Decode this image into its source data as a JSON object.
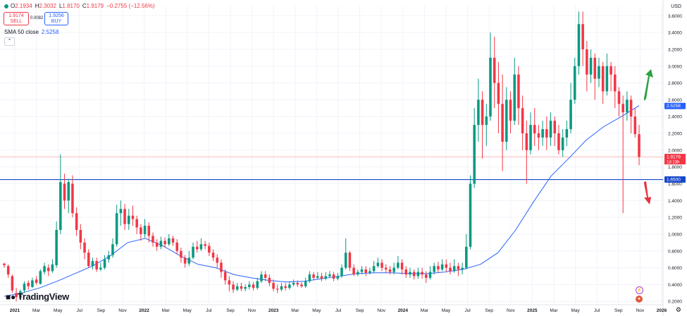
{
  "legend": {
    "open_label": "O",
    "open": "2.1934",
    "high_label": "H",
    "high": "2.3032",
    "low_label": "L",
    "low": "1.8170",
    "close_label": "C",
    "close": "1.9179",
    "change": "−0.2755 (−12.56%)"
  },
  "trade": {
    "sell_price": "1.9174",
    "sell_label": "SELL",
    "spread": "0.0082",
    "buy_price": "1.9256",
    "buy_label": "BUY"
  },
  "indicator": {
    "name": "SMA 50 close",
    "value": "2.5258"
  },
  "collapse_icon": "chevron-up-icon",
  "currency": "USD",
  "brand": "TradingView",
  "chart_data": {
    "type": "candlestick",
    "timeframe": "weekly",
    "y_ticks": [
      "3.6000",
      "3.4000",
      "3.2000",
      "3.0000",
      "2.8000",
      "2.6000",
      "2.4000",
      "2.2000",
      "2.0000",
      "1.8000",
      "1.6000",
      "1.4000",
      "1.2000",
      "1.0000",
      "0.8000",
      "0.6000",
      "0.4000",
      "0.2000"
    ],
    "x_ticks": [
      "2021",
      "Mar",
      "May",
      "Jul",
      "Sep",
      "Nov",
      "2022",
      "Mar",
      "May",
      "Jul",
      "Sep",
      "Nov",
      "2023",
      "Mar",
      "May",
      "Jul",
      "Sep",
      "Nov",
      "2024",
      "Mar",
      "May",
      "Jul",
      "Sep",
      "Nov",
      "2025",
      "Mar",
      "May",
      "Jul",
      "Sep",
      "Nov",
      "2026"
    ],
    "ylim": [
      0.16,
      3.72
    ],
    "price_line": {
      "value": 1.9179,
      "label": "1.9179",
      "countdown": "1d 13h",
      "color": "#f23645"
    },
    "sma_label": {
      "value": 2.5258,
      "label": "2.5258",
      "color": "#2962ff"
    },
    "horizontal_line": {
      "value": 1.65,
      "label": "1.6500",
      "color": "#1848cc"
    },
    "arrows": [
      {
        "direction": "up",
        "color": "#2ea043"
      },
      {
        "direction": "down",
        "color": "#e5323f"
      }
    ],
    "up_color": "#089981",
    "down_color": "#f23645",
    "sma_color": "#2962ff",
    "sma_values": [
      0.26,
      0.3,
      0.36,
      0.44,
      0.53,
      0.62,
      0.74,
      0.9,
      0.95,
      0.86,
      0.74,
      0.64,
      0.6,
      0.52,
      0.48,
      0.45,
      0.43,
      0.44,
      0.47,
      0.5,
      0.53,
      0.54,
      0.54,
      0.53,
      0.53,
      0.55,
      0.58,
      0.64,
      0.78,
      1.05,
      1.38,
      1.69,
      1.9,
      2.12,
      2.28,
      2.4,
      2.53
    ],
    "candles": [
      [
        0.65,
        0.63,
        0.66,
        0.6
      ],
      [
        0.62,
        0.52,
        0.64,
        0.48
      ],
      [
        0.5,
        0.33,
        0.52,
        0.3
      ],
      [
        0.3,
        0.25,
        0.36,
        0.2
      ],
      [
        0.24,
        0.32,
        0.34,
        0.22
      ],
      [
        0.33,
        0.41,
        0.44,
        0.3
      ],
      [
        0.42,
        0.38,
        0.45,
        0.34
      ],
      [
        0.37,
        0.45,
        0.48,
        0.36
      ],
      [
        0.46,
        0.42,
        0.5,
        0.4
      ],
      [
        0.41,
        0.56,
        0.58,
        0.4
      ],
      [
        0.55,
        0.62,
        0.66,
        0.52
      ],
      [
        0.6,
        0.56,
        0.64,
        0.5
      ],
      [
        0.56,
        0.64,
        0.7,
        0.54
      ],
      [
        0.63,
        1.05,
        1.15,
        0.6
      ],
      [
        1.05,
        1.62,
        1.95,
        1.0
      ],
      [
        1.6,
        1.4,
        1.72,
        1.3
      ],
      [
        1.4,
        1.62,
        1.66,
        1.25
      ],
      [
        1.6,
        1.25,
        1.7,
        1.2
      ],
      [
        1.25,
        1.05,
        1.32,
        0.98
      ],
      [
        1.05,
        0.9,
        1.12,
        0.82
      ],
      [
        0.9,
        0.78,
        0.95,
        0.7
      ],
      [
        0.78,
        0.62,
        0.82,
        0.6
      ],
      [
        0.62,
        0.68,
        0.72,
        0.58
      ],
      [
        0.68,
        0.58,
        0.72,
        0.55
      ],
      [
        0.58,
        0.6,
        0.66,
        0.56
      ],
      [
        0.6,
        0.7,
        0.75,
        0.58
      ],
      [
        0.7,
        0.75,
        0.8,
        0.66
      ],
      [
        0.75,
        0.88,
        0.95,
        0.72
      ],
      [
        0.88,
        1.25,
        1.35,
        0.85
      ],
      [
        1.25,
        1.3,
        1.4,
        1.1
      ],
      [
        1.3,
        1.12,
        1.36,
        1.05
      ],
      [
        1.12,
        1.22,
        1.3,
        1.05
      ],
      [
        1.22,
        1.18,
        1.34,
        1.1
      ],
      [
        1.18,
        1.08,
        1.22,
        1.0
      ],
      [
        1.08,
        1.0,
        1.12,
        0.92
      ],
      [
        1.0,
        1.1,
        1.18,
        0.96
      ],
      [
        1.1,
        0.98,
        1.14,
        0.9
      ],
      [
        0.98,
        0.9,
        1.02,
        0.85
      ],
      [
        0.9,
        0.85,
        0.94,
        0.8
      ],
      [
        0.85,
        0.92,
        0.97,
        0.82
      ],
      [
        0.92,
        0.88,
        0.96,
        0.84
      ],
      [
        0.88,
        0.95,
        1.0,
        0.86
      ],
      [
        0.95,
        0.9,
        0.98,
        0.86
      ],
      [
        0.9,
        0.8,
        0.94,
        0.76
      ],
      [
        0.8,
        0.72,
        0.84,
        0.66
      ],
      [
        0.72,
        0.65,
        0.75,
        0.6
      ],
      [
        0.65,
        0.72,
        0.8,
        0.62
      ],
      [
        0.72,
        0.85,
        0.9,
        0.7
      ],
      [
        0.85,
        0.82,
        0.92,
        0.78
      ],
      [
        0.82,
        0.88,
        0.95,
        0.8
      ],
      [
        0.88,
        0.86,
        0.92,
        0.82
      ],
      [
        0.86,
        0.78,
        0.9,
        0.74
      ],
      [
        0.78,
        0.72,
        0.82,
        0.68
      ],
      [
        0.72,
        0.66,
        0.76,
        0.6
      ],
      [
        0.66,
        0.55,
        0.7,
        0.48
      ],
      [
        0.55,
        0.45,
        0.58,
        0.4
      ],
      [
        0.45,
        0.4,
        0.5,
        0.32
      ],
      [
        0.4,
        0.34,
        0.44,
        0.3
      ],
      [
        0.34,
        0.38,
        0.42,
        0.32
      ],
      [
        0.38,
        0.35,
        0.42,
        0.32
      ],
      [
        0.35,
        0.37,
        0.4,
        0.32
      ],
      [
        0.37,
        0.4,
        0.44,
        0.34
      ],
      [
        0.4,
        0.36,
        0.43,
        0.33
      ],
      [
        0.36,
        0.44,
        0.48,
        0.34
      ],
      [
        0.44,
        0.52,
        0.56,
        0.42
      ],
      [
        0.52,
        0.48,
        0.56,
        0.44
      ],
      [
        0.48,
        0.42,
        0.52,
        0.38
      ],
      [
        0.42,
        0.35,
        0.46,
        0.32
      ],
      [
        0.35,
        0.34,
        0.4,
        0.3
      ],
      [
        0.34,
        0.38,
        0.42,
        0.32
      ],
      [
        0.38,
        0.36,
        0.42,
        0.33
      ],
      [
        0.36,
        0.4,
        0.44,
        0.34
      ],
      [
        0.4,
        0.42,
        0.46,
        0.38
      ],
      [
        0.42,
        0.4,
        0.45,
        0.37
      ],
      [
        0.4,
        0.38,
        0.43,
        0.36
      ],
      [
        0.38,
        0.44,
        0.48,
        0.36
      ],
      [
        0.44,
        0.52,
        0.56,
        0.42
      ],
      [
        0.52,
        0.48,
        0.55,
        0.45
      ],
      [
        0.48,
        0.5,
        0.55,
        0.46
      ],
      [
        0.5,
        0.47,
        0.54,
        0.44
      ],
      [
        0.47,
        0.5,
        0.55,
        0.45
      ],
      [
        0.5,
        0.52,
        0.56,
        0.48
      ],
      [
        0.52,
        0.47,
        0.55,
        0.44
      ],
      [
        0.47,
        0.5,
        0.54,
        0.45
      ],
      [
        0.5,
        0.6,
        0.64,
        0.48
      ],
      [
        0.6,
        0.78,
        0.95,
        0.58
      ],
      [
        0.78,
        0.6,
        0.8,
        0.56
      ],
      [
        0.6,
        0.52,
        0.64,
        0.5
      ],
      [
        0.52,
        0.55,
        0.58,
        0.5
      ],
      [
        0.55,
        0.58,
        0.62,
        0.52
      ],
      [
        0.58,
        0.54,
        0.62,
        0.5
      ],
      [
        0.54,
        0.56,
        0.6,
        0.52
      ],
      [
        0.56,
        0.62,
        0.68,
        0.54
      ],
      [
        0.62,
        0.66,
        0.72,
        0.6
      ],
      [
        0.66,
        0.6,
        0.7,
        0.56
      ],
      [
        0.6,
        0.58,
        0.64,
        0.54
      ],
      [
        0.58,
        0.55,
        0.62,
        0.52
      ],
      [
        0.55,
        0.6,
        0.66,
        0.52
      ],
      [
        0.6,
        0.66,
        0.74,
        0.58
      ],
      [
        0.66,
        0.58,
        0.7,
        0.52
      ],
      [
        0.58,
        0.52,
        0.62,
        0.48
      ],
      [
        0.52,
        0.55,
        0.6,
        0.48
      ],
      [
        0.55,
        0.5,
        0.58,
        0.46
      ],
      [
        0.5,
        0.55,
        0.6,
        0.47
      ],
      [
        0.55,
        0.52,
        0.6,
        0.47
      ],
      [
        0.52,
        0.48,
        0.56,
        0.42
      ],
      [
        0.48,
        0.55,
        0.62,
        0.46
      ],
      [
        0.55,
        0.62,
        0.66,
        0.52
      ],
      [
        0.62,
        0.58,
        0.67,
        0.54
      ],
      [
        0.58,
        0.64,
        0.7,
        0.56
      ],
      [
        0.64,
        0.6,
        0.7,
        0.55
      ],
      [
        0.6,
        0.56,
        0.66,
        0.52
      ],
      [
        0.56,
        0.62,
        0.7,
        0.54
      ],
      [
        0.62,
        0.58,
        0.66,
        0.5
      ],
      [
        0.58,
        0.6,
        0.66,
        0.52
      ],
      [
        0.6,
        0.85,
        1.0,
        0.58
      ],
      [
        0.85,
        1.6,
        1.7,
        0.82
      ],
      [
        1.6,
        2.3,
        2.5,
        1.55
      ],
      [
        2.3,
        2.6,
        2.85,
        2.1
      ],
      [
        2.6,
        2.3,
        2.7,
        1.9
      ],
      [
        2.3,
        2.4,
        2.55,
        2.05
      ],
      [
        2.4,
        3.1,
        3.4,
        2.35
      ],
      [
        3.1,
        2.8,
        3.35,
        2.5
      ],
      [
        2.8,
        2.55,
        3.05,
        2.2
      ],
      [
        2.55,
        2.1,
        2.9,
        1.75
      ],
      [
        2.1,
        2.6,
        2.75,
        2.0
      ],
      [
        2.6,
        2.35,
        2.7,
        2.2
      ],
      [
        2.35,
        2.9,
        3.1,
        2.3
      ],
      [
        2.9,
        2.5,
        3.0,
        2.3
      ],
      [
        2.5,
        2.2,
        2.65,
        2.0
      ],
      [
        2.2,
        2.0,
        2.35,
        1.6
      ],
      [
        2.0,
        2.3,
        2.45,
        1.95
      ],
      [
        2.3,
        2.2,
        2.5,
        2.05
      ],
      [
        2.2,
        2.15,
        2.3,
        2.0
      ],
      [
        2.15,
        2.25,
        2.35,
        2.05
      ],
      [
        2.25,
        2.15,
        2.4,
        2.0
      ],
      [
        2.15,
        2.35,
        2.45,
        2.05
      ],
      [
        2.35,
        2.2,
        2.4,
        2.05
      ],
      [
        2.2,
        2.0,
        2.3,
        1.95
      ],
      [
        2.0,
        2.15,
        2.25,
        1.92
      ],
      [
        2.15,
        2.25,
        2.35,
        2.05
      ],
      [
        2.25,
        2.6,
        2.8,
        2.2
      ],
      [
        2.6,
        3.0,
        3.1,
        2.55
      ],
      [
        3.0,
        3.5,
        3.65,
        2.9
      ],
      [
        3.5,
        3.2,
        3.65,
        3.0
      ],
      [
        3.2,
        2.9,
        3.3,
        2.7
      ],
      [
        2.9,
        3.1,
        3.2,
        2.8
      ],
      [
        3.1,
        2.85,
        3.15,
        2.6
      ],
      [
        2.85,
        3.0,
        3.1,
        2.75
      ],
      [
        3.0,
        2.7,
        3.05,
        2.55
      ],
      [
        2.7,
        3.0,
        3.15,
        2.65
      ],
      [
        3.0,
        2.9,
        3.05,
        2.7
      ],
      [
        2.9,
        2.7,
        3.0,
        2.5
      ],
      [
        2.7,
        2.55,
        2.75,
        2.4
      ],
      [
        2.55,
        2.45,
        2.65,
        1.25
      ],
      [
        2.45,
        2.6,
        2.7,
        2.35
      ],
      [
        2.6,
        2.4,
        2.65,
        2.2
      ],
      [
        2.4,
        2.19,
        2.5,
        2.15
      ],
      [
        2.19,
        1.92,
        2.3,
        1.82
      ]
    ]
  }
}
